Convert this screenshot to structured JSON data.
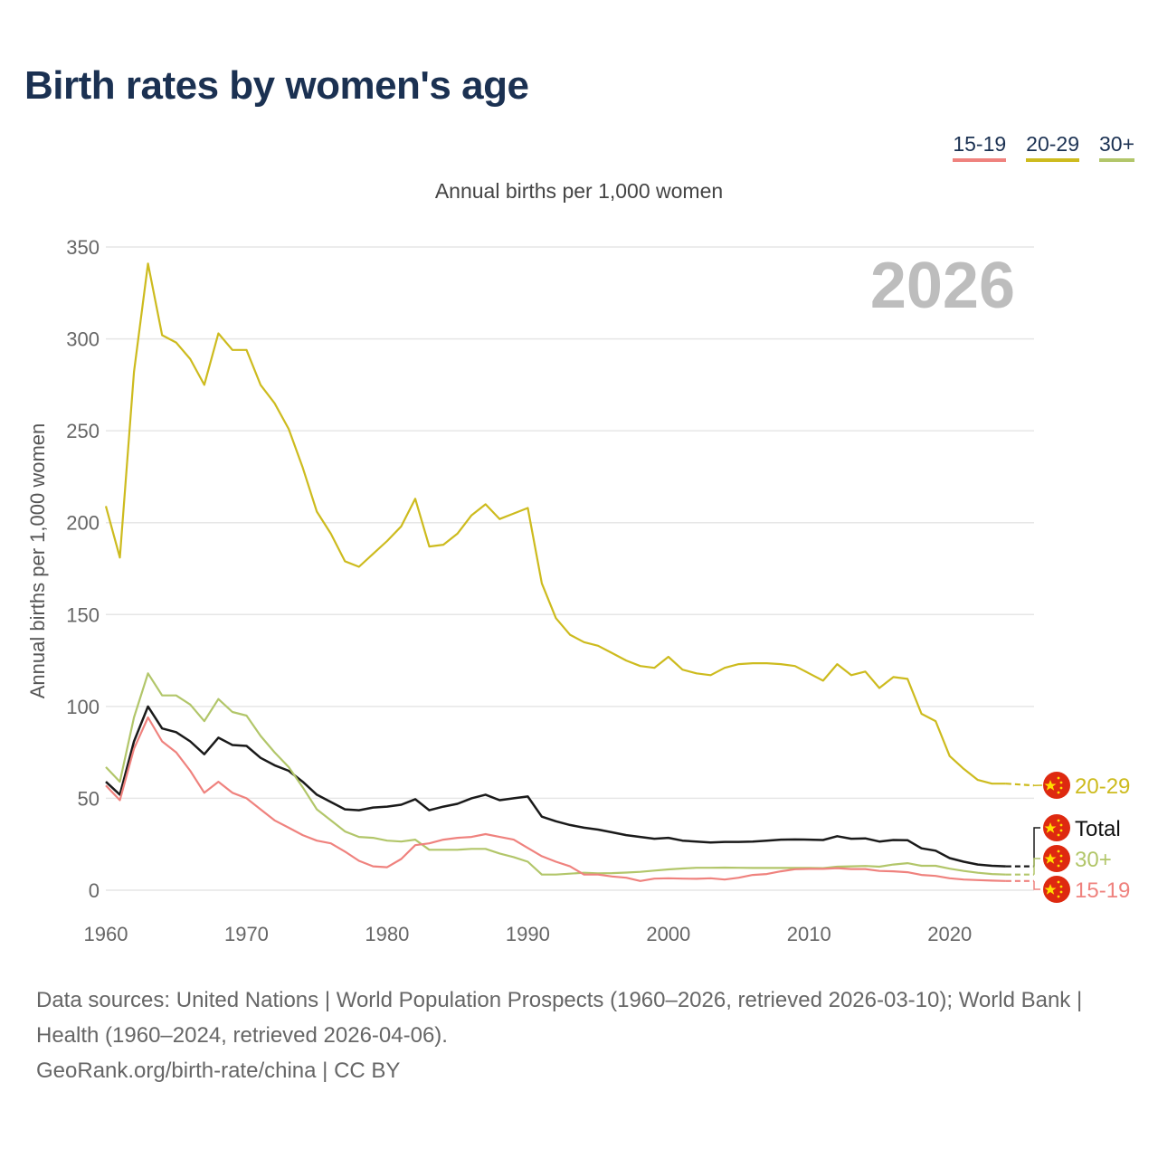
{
  "title": "Birth rates by women's age",
  "legend": [
    {
      "label": "15-19",
      "color": "#ef827e"
    },
    {
      "label": "20-29",
      "color": "#cdbb1e"
    },
    {
      "label": "30+",
      "color": "#b2c66a"
    }
  ],
  "footer": {
    "line1": "Data sources: United Nations | World Population Prospects (1960–2026, retrieved 2026-03-10); World Bank | Health (1960–2024, retrieved 2026-04-06).",
    "line2": "GeoRank.org/birth-rate/china | CC BY"
  },
  "chart_data": {
    "type": "line",
    "title": "Annual births per 1,000 women",
    "ylabel": "Annual births per 1,000 women",
    "xlabel": "",
    "current_year_label": "2026",
    "xlim": [
      1960,
      2026
    ],
    "ylim": [
      0,
      350
    ],
    "x_ticks": [
      "1960",
      "1970",
      "1980",
      "1990",
      "2000",
      "2010",
      "2020"
    ],
    "y_ticks": [
      "0",
      "50",
      "100",
      "150",
      "200",
      "250",
      "300",
      "350"
    ],
    "grid": true,
    "projection_from": 2024,
    "x_start": 1960,
    "series": [
      {
        "name": "20-29",
        "label": "20-29",
        "color": "#cdbb1e",
        "flag": "china-flag",
        "values": [
          209,
          181,
          282,
          341,
          302,
          298,
          289,
          275,
          303,
          294,
          294,
          275,
          265,
          251,
          230,
          206,
          194,
          179,
          176,
          183,
          190,
          198,
          213,
          187,
          188,
          194,
          204,
          210,
          202,
          205,
          208,
          167,
          148,
          139,
          135,
          133,
          129,
          125,
          122,
          121,
          127,
          120,
          118,
          117,
          121,
          123,
          123.5,
          123.5,
          123,
          122,
          118,
          114,
          123,
          117,
          119,
          110,
          116,
          115,
          96,
          92,
          73,
          66,
          60,
          58,
          58,
          57.5,
          57
        ]
      },
      {
        "name": "Total",
        "label": "Total",
        "color": "#1a1a1a",
        "flag": "china-flag",
        "values": [
          59,
          52,
          81,
          100,
          88,
          86,
          81,
          74,
          83,
          79,
          78.5,
          72,
          68,
          65,
          59,
          52,
          48,
          44,
          43.5,
          45,
          45.5,
          46.5,
          49.5,
          43.5,
          45.5,
          47,
          50,
          52,
          49,
          50,
          51,
          40,
          37.5,
          35.5,
          34,
          33,
          31.5,
          30,
          29,
          28,
          28.5,
          27,
          26.5,
          26,
          26.3,
          26.3,
          26.5,
          27,
          27.5,
          27.6,
          27.5,
          27.3,
          29.4,
          28,
          28.2,
          26.5,
          27.3,
          27.2,
          22.8,
          21.5,
          17.5,
          15.5,
          14,
          13.3,
          13,
          13,
          13
        ]
      },
      {
        "name": "30+",
        "label": "30+",
        "color": "#b2c66a",
        "flag": "china-flag",
        "values": [
          67,
          59,
          94,
          118,
          106,
          106,
          101,
          92,
          104,
          97,
          95,
          84,
          75,
          67,
          56,
          44,
          38,
          32,
          29,
          28.5,
          27,
          26.5,
          27.5,
          22,
          22,
          22,
          22.5,
          22.5,
          20,
          18,
          15.5,
          8.5,
          8.5,
          9,
          9.5,
          9.2,
          9.3,
          9.6,
          10,
          10.7,
          11.3,
          11.8,
          12.2,
          12.2,
          12.3,
          12.2,
          12.1,
          12.1,
          12.1,
          12.1,
          12.1,
          12,
          12.8,
          13,
          13.2,
          12.8,
          14,
          14.7,
          13.3,
          13.3,
          11.7,
          10.5,
          9.5,
          8.8,
          8.5,
          8.5,
          8.5
        ]
      },
      {
        "name": "15-19",
        "label": "15-19",
        "color": "#ef827e",
        "flag": "china-flag",
        "values": [
          57,
          49,
          77,
          94,
          81,
          75,
          65,
          53,
          59,
          53,
          50,
          44,
          38,
          34,
          30,
          27,
          25.5,
          21,
          16,
          13,
          12.5,
          17,
          24.5,
          25.5,
          27.5,
          28.5,
          29,
          30.5,
          29,
          27.5,
          23,
          18.5,
          15.5,
          13,
          8.5,
          8.5,
          7.5,
          6.8,
          5,
          6.3,
          6.5,
          6.3,
          6.2,
          6.5,
          5.8,
          6.8,
          8.3,
          8.8,
          10.3,
          11.4,
          11.6,
          11.6,
          12,
          11.5,
          11.5,
          10.5,
          10.3,
          9.8,
          8.3,
          7.8,
          6.5,
          5.8,
          5.5,
          5.2,
          5,
          5,
          5
        ]
      }
    ]
  }
}
